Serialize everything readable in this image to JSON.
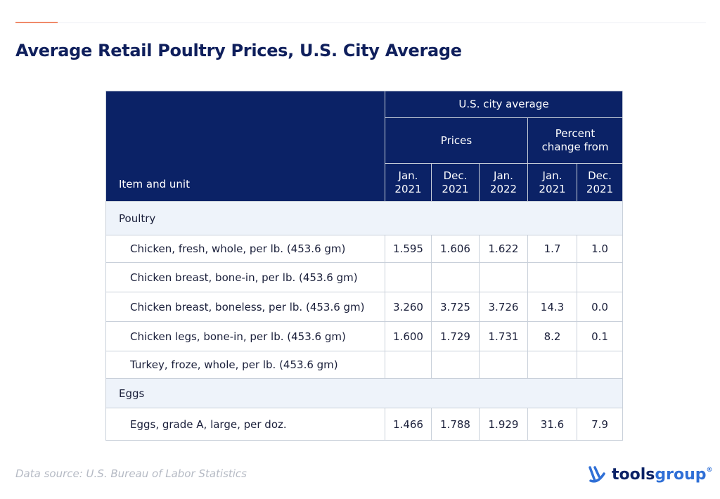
{
  "header": {
    "title": "Average Retail Poultry Prices, U.S. City Average"
  },
  "table": {
    "header": {
      "item": "Item and unit",
      "group": "U.S. city average",
      "prices": "Prices",
      "percent": "Percent\nchange from",
      "columns": [
        "Jan.\n2021",
        "Dec.\n2021",
        "Jan.\n2022",
        "Jan.\n2021",
        "Dec.\n2021"
      ]
    },
    "sections": [
      {
        "title": "Poultry",
        "rows": [
          {
            "item": "Chicken, fresh, whole, per lb. (453.6 gm)",
            "values": [
              "1.595",
              "1.606",
              "1.622",
              "1.7",
              "1.0"
            ]
          },
          {
            "item": "Chicken breast, bone-in, per lb. (453.6 gm)",
            "values": [
              null,
              null,
              null,
              null,
              null
            ]
          },
          {
            "item": "Chicken breast, boneless, per lb. (453.6 gm)",
            "values": [
              "3.260",
              "3.725",
              "3.726",
              "14.3",
              "0.0"
            ]
          },
          {
            "item": "Chicken legs, bone-in, per lb. (453.6 gm)",
            "values": [
              "1.600",
              "1.729",
              "1.731",
              "8.2",
              "0.1"
            ]
          },
          {
            "item": "Turkey, froze, whole, per lb. (453.6 gm)",
            "values": [
              null,
              null,
              null,
              null,
              null
            ]
          }
        ]
      },
      {
        "title": "Eggs",
        "rows": [
          {
            "item": "Eggs, grade A, large, per doz.",
            "values": [
              "1.466",
              "1.788",
              "1.929",
              "31.6",
              "7.9"
            ]
          }
        ]
      }
    ]
  },
  "footer": {
    "source": "Data source: U.S. Bureau of Labor Statistics",
    "logo": {
      "part1": "tools",
      "part2": "group",
      "mark": "®"
    }
  }
}
